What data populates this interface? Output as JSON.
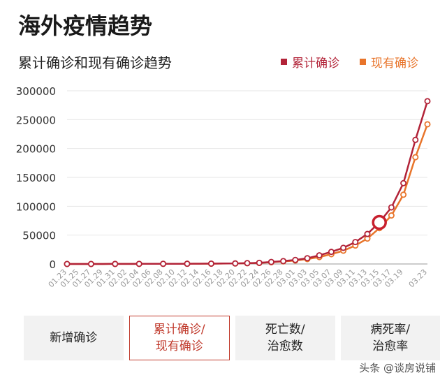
{
  "title": "海外疫情趋势",
  "tabs": [
    {
      "label": "新增确诊",
      "active": false
    },
    {
      "label": "累计确诊/\n现有确诊",
      "active": true
    },
    {
      "label": "死亡数/\n治愈数",
      "active": false
    },
    {
      "label": "病死率/\n治愈率",
      "active": false
    }
  ],
  "watermark": "头条 @谈房说铺",
  "colors": {
    "cumulative": "#b22338",
    "current": "#e8742a",
    "highlight": "#c8202e"
  },
  "chart_data": {
    "type": "line",
    "title": "累计确诊和现有确诊趋势",
    "ylim": [
      0,
      300000
    ],
    "yticks": [
      0,
      50000,
      100000,
      150000,
      200000,
      250000,
      300000
    ],
    "x": [
      "01.23",
      "01.24",
      "01.25",
      "01.26",
      "01.27",
      "01.28",
      "01.29",
      "01.30",
      "01.31",
      "02.01",
      "02.02",
      "02.03",
      "02.04",
      "02.05",
      "02.06",
      "02.07",
      "02.08",
      "02.09",
      "02.10",
      "02.11",
      "02.12",
      "02.13",
      "02.14",
      "02.15",
      "02.16",
      "02.17",
      "02.18",
      "02.19",
      "02.20",
      "02.21",
      "02.22",
      "02.23",
      "02.24",
      "02.25",
      "02.26",
      "02.27",
      "02.28",
      "02.29",
      "03.01",
      "03.02",
      "03.03",
      "03.04",
      "03.05",
      "03.06",
      "03.07",
      "03.08",
      "03.09",
      "03.10",
      "03.11",
      "03.12",
      "03.13",
      "03.14",
      "03.15",
      "03.16",
      "03.17",
      "03.18",
      "03.19",
      "03.20",
      "03.21",
      "03.22",
      "03.23"
    ],
    "xticklabels": [
      "01.23",
      "01.25",
      "01.27",
      "01.29",
      "01.31",
      "02.02",
      "02.04",
      "02.06",
      "02.08",
      "02.10",
      "02.12",
      "02.14",
      "02.16",
      "02.18",
      "02.20",
      "02.22",
      "02.24",
      "02.26",
      "02.28",
      "03.01",
      "03.03",
      "03.05",
      "03.07",
      "03.09",
      "03.11",
      "03.13",
      "03.15",
      "03.17",
      "03.19",
      "03.23"
    ],
    "series": [
      {
        "name": "累计确诊",
        "points": [
          [
            "01.23",
            0
          ],
          [
            "01.27",
            0
          ],
          [
            "01.31",
            100
          ],
          [
            "02.04",
            200
          ],
          [
            "02.08",
            300
          ],
          [
            "02.12",
            400
          ],
          [
            "02.16",
            600
          ],
          [
            "02.20",
            1000
          ],
          [
            "02.22",
            1500
          ],
          [
            "02.24",
            2000
          ],
          [
            "02.26",
            3500
          ],
          [
            "02.28",
            5000
          ],
          [
            "03.01",
            7000
          ],
          [
            "03.03",
            10000
          ],
          [
            "03.05",
            15000
          ],
          [
            "03.07",
            21000
          ],
          [
            "03.09",
            28000
          ],
          [
            "03.11",
            38000
          ],
          [
            "03.13",
            52000
          ],
          [
            "03.15",
            72000
          ],
          [
            "03.17",
            98000
          ],
          [
            "03.19",
            140000
          ],
          [
            "03.21",
            215000
          ],
          [
            "03.23",
            282000
          ]
        ]
      },
      {
        "name": "现有确诊",
        "points": [
          [
            "01.23",
            0
          ],
          [
            "01.27",
            0
          ],
          [
            "01.31",
            100
          ],
          [
            "02.04",
            200
          ],
          [
            "02.08",
            300
          ],
          [
            "02.12",
            400
          ],
          [
            "02.16",
            500
          ],
          [
            "02.20",
            900
          ],
          [
            "02.22",
            1300
          ],
          [
            "02.24",
            1800
          ],
          [
            "02.26",
            3000
          ],
          [
            "02.28",
            4500
          ],
          [
            "03.01",
            6000
          ],
          [
            "03.03",
            8500
          ],
          [
            "03.05",
            12000
          ],
          [
            "03.07",
            17000
          ],
          [
            "03.09",
            23000
          ],
          [
            "03.11",
            32000
          ],
          [
            "03.13",
            44000
          ],
          [
            "03.15",
            62000
          ],
          [
            "03.17",
            84000
          ],
          [
            "03.19",
            120000
          ],
          [
            "03.21",
            185000
          ],
          [
            "03.23",
            242000
          ]
        ]
      }
    ],
    "highlight": {
      "series": "累计确诊",
      "x": "03.15",
      "y": 72000
    },
    "legend_position": "top-right",
    "grid": true
  }
}
